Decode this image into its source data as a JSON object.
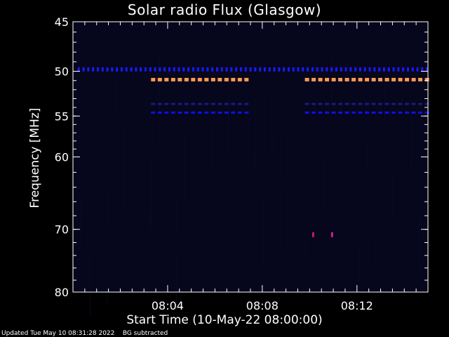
{
  "chart_data": {
    "type": "heatmap",
    "title": "Solar radio Flux (Glasgow)",
    "xlabel": "Start Time (10-May-22 08:00:00)",
    "ylabel": "Frequency [MHz]",
    "x_unit": "minutes after 08:00:00",
    "xlim": [
      0,
      15
    ],
    "ylim": [
      45,
      80
    ],
    "y_scale": "log",
    "x_ticks": [
      {
        "value": 4,
        "label": "08:04"
      },
      {
        "value": 8,
        "label": "08:08"
      },
      {
        "value": 12,
        "label": "08:12"
      }
    ],
    "y_ticks": [
      {
        "value": 45,
        "label": "45"
      },
      {
        "value": 50,
        "label": "50"
      },
      {
        "value": 55,
        "label": "55"
      },
      {
        "value": 60,
        "label": "60"
      },
      {
        "value": 70,
        "label": "70"
      },
      {
        "value": 80,
        "label": "80"
      }
    ],
    "background_color": "#06061c",
    "bands": [
      {
        "freq": 49.8,
        "x_start": 0.2,
        "x_end": 15.0,
        "color": "#1a1aff"
      },
      {
        "freq": 50.9,
        "x_start": 3.3,
        "x_end": 7.5,
        "color": "#ff9a50"
      },
      {
        "freq": 50.9,
        "x_start": 9.8,
        "x_end": 15.0,
        "color": "#ff9a50"
      },
      {
        "freq": 53.6,
        "x_start": 3.3,
        "x_end": 7.5,
        "color": "#1a1a80"
      },
      {
        "freq": 53.6,
        "x_start": 9.8,
        "x_end": 15.0,
        "color": "#1a1a80"
      },
      {
        "freq": 54.6,
        "x_start": 3.3,
        "x_end": 7.5,
        "color": "#1010e0"
      },
      {
        "freq": 54.6,
        "x_start": 9.8,
        "x_end": 15.0,
        "color": "#1010e0"
      }
    ],
    "spots": [
      {
        "x": 10.15,
        "freq": 70.8,
        "color": "#c0205a"
      },
      {
        "x": 10.95,
        "freq": 70.8,
        "color": "#d02080"
      }
    ]
  },
  "footer": {
    "updated": "Updated Tue May 10 08:31:28 2022",
    "note": "BG subtracted"
  }
}
